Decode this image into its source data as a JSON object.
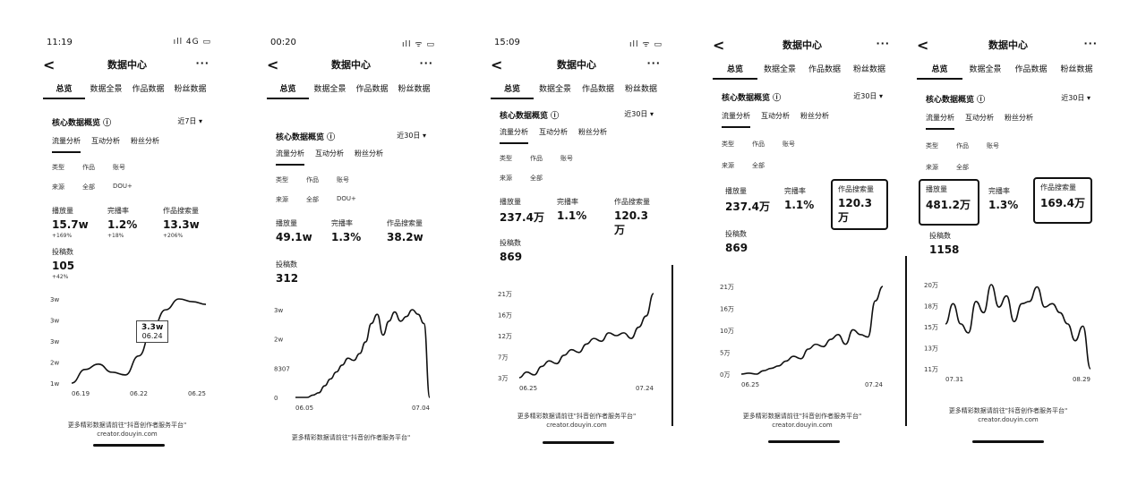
{
  "common": {
    "title": "数据中心",
    "more": "···",
    "back": "<",
    "tabs": [
      "总览",
      "数据全景",
      "作品数据",
      "粉丝数据"
    ],
    "section_title": "核心数据概览",
    "subtabs": [
      "流量分析",
      "互动分析",
      "粉丝分析"
    ],
    "filter_type": "类型",
    "filter_works": "作品",
    "filter_account": "账号",
    "filter_source": "来源",
    "filter_all": "全部",
    "metric_plays": "播放量",
    "metric_completion": "完播率",
    "metric_search": "作品搜索量",
    "metric_posts": "投稿数"
  },
  "screens": [
    {
      "status_time": "11:19",
      "status_right": "ıll 4G ▭",
      "range": "近7日 ▾",
      "source_extra": "DOU+",
      "plays": "15.7w",
      "plays_delta": "+169%",
      "completion": "1.2%",
      "completion_delta": "+18%",
      "search": "13.3w",
      "search_delta": "+206%",
      "posts": "105",
      "posts_delta": "+42%",
      "tooltip_value": "3.3w",
      "tooltip_date": "06.24",
      "footer_1": "更多精彩数据请前往\"抖音创作者服务平台\"",
      "footer_2": "creator.douyin.com"
    },
    {
      "status_time": "00:20",
      "status_right": "ıll ᯤ ▭",
      "range": "近30日 ▾",
      "source_extra": "DOU+",
      "plays": "49.1w",
      "completion": "1.3%",
      "search": "38.2w",
      "posts": "312",
      "footer_1": "更多精彩数据请前往\"抖音创作者服务平台\""
    },
    {
      "status_time": "15:09",
      "status_right": "ıll ᯤ ▭",
      "range": "近30日 ▾",
      "plays": "237.4万",
      "completion": "1.1%",
      "search": "120.3万",
      "posts": "869",
      "footer_1": "更多精彩数据请前往\"抖音创作者服务平台\"",
      "footer_2": "creator.douyin.com"
    },
    {
      "range": "近30日 ▾",
      "plays": "237.4万",
      "completion": "1.1%",
      "search": "120.3万",
      "posts": "869",
      "footer_1": "更多精彩数据请前往\"抖音创作者服务平台\"",
      "footer_2": "creator.douyin.com"
    },
    {
      "range": "近30日 ▾",
      "plays": "481.2万",
      "completion": "1.3%",
      "search": "169.4万",
      "posts": "1158",
      "footer_1": "更多精彩数据请前往\"抖音创作者服务平台\"",
      "footer_2": "creator.douyin.com"
    }
  ],
  "chart_data": [
    {
      "type": "line",
      "yticks": [
        "1w",
        "2w",
        "3w",
        "3w",
        "3w"
      ],
      "xticks": [
        "06.19",
        "06.22",
        "06.25"
      ],
      "values": [
        0.2,
        0.7,
        0.9,
        0.6,
        0.5,
        1.2,
        2.2,
        2.9,
        3.3,
        3.2,
        3.1
      ]
    },
    {
      "type": "line",
      "yticks": [
        "0",
        "8307",
        "2w",
        "3w"
      ],
      "xticks": [
        "06.05",
        "07.04"
      ],
      "values": [
        0,
        0,
        0,
        0.1,
        0.2,
        0.5,
        0.8,
        1.1,
        1.4,
        1.7,
        1.6,
        1.9,
        2.4,
        3.2,
        3.6,
        2.7,
        3.3,
        3.7,
        3.3,
        3.5,
        3.8,
        3.6,
        3.2,
        0
      ]
    },
    {
      "type": "line",
      "yticks": [
        "3万",
        "7万",
        "12万",
        "16万",
        "21万"
      ],
      "xticks": [
        "06.25",
        "07.24"
      ],
      "values": [
        3,
        4,
        3.5,
        5,
        6,
        5.5,
        7,
        8,
        7.5,
        9,
        10,
        9.5,
        11,
        10.5,
        11,
        10,
        12,
        14,
        18
      ]
    },
    {
      "type": "line",
      "yticks": [
        "0万",
        "5万",
        "10万",
        "16万",
        "21万"
      ],
      "xticks": [
        "06.25",
        "07.24"
      ],
      "values": [
        0.8,
        1,
        0.8,
        1.5,
        2,
        2.5,
        3.5,
        4.5,
        4,
        6,
        7,
        6.5,
        8,
        9,
        7,
        10,
        9,
        8.5,
        16,
        19
      ]
    },
    {
      "type": "line",
      "yticks": [
        "11万",
        "13万",
        "15万",
        "18万",
        "20万"
      ],
      "xticks": [
        "07.31",
        "08.29"
      ],
      "values": [
        15,
        16.8,
        15,
        14.2,
        17,
        16,
        18.5,
        16.5,
        17.5,
        15.2,
        16.8,
        17,
        18.3,
        16.5,
        16.8,
        16,
        15,
        13.5,
        14.8,
        11
      ]
    }
  ]
}
